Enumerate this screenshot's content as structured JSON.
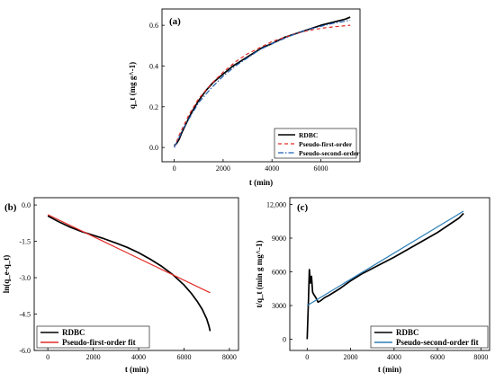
{
  "chart_data": [
    {
      "id": "a",
      "type": "line",
      "panel_label": "(a)",
      "xlabel": "t (min)",
      "ylabel": "q_t (mg g^-1)",
      "xlim": [
        -500,
        7600
      ],
      "ylim": [
        -0.07,
        0.68
      ],
      "xticks": [
        0,
        2000,
        4000,
        6000
      ],
      "xtick_labels": [
        "0",
        "2000",
        "4000",
        "6000"
      ],
      "yticks": [
        0.0,
        0.2,
        0.4,
        0.6
      ],
      "ytick_labels": [
        "0.0",
        "0.2",
        "0.4",
        "0.6"
      ],
      "legend_position": "bottom-right",
      "series": [
        {
          "name": "RDBC",
          "color": "#000000",
          "dash": "solid",
          "x": [
            0,
            100,
            200,
            300,
            500,
            700,
            1000,
            1300,
            1600,
            2000,
            2400,
            2800,
            3200,
            3600,
            4000,
            4500,
            5000,
            5500,
            6000,
            6500,
            7000,
            7200
          ],
          "y": [
            0.01,
            0.02,
            0.04,
            0.07,
            0.12,
            0.17,
            0.23,
            0.28,
            0.32,
            0.36,
            0.4,
            0.43,
            0.46,
            0.49,
            0.51,
            0.54,
            0.56,
            0.58,
            0.6,
            0.615,
            0.63,
            0.64
          ]
        },
        {
          "name": "Pseudo-first-order",
          "color": "#e32b26",
          "dash": "4,3",
          "x": [
            0,
            100,
            200,
            400,
            600,
            800,
            1000,
            1500,
            2000,
            2500,
            3000,
            3500,
            4000,
            4500,
            5000,
            5500,
            6000,
            6500,
            7000,
            7200
          ],
          "y": [
            0.0,
            0.03,
            0.06,
            0.11,
            0.16,
            0.2,
            0.24,
            0.31,
            0.37,
            0.42,
            0.46,
            0.49,
            0.52,
            0.54,
            0.56,
            0.575,
            0.585,
            0.592,
            0.598,
            0.6
          ]
        },
        {
          "name": "Pseudo-second-order",
          "color": "#1f5fb4",
          "dash": "6,2,1.5,2",
          "x": [
            0,
            100,
            200,
            400,
            600,
            800,
            1000,
            1500,
            2000,
            2500,
            3000,
            3500,
            4000,
            4500,
            5000,
            5500,
            6000,
            6500,
            7000,
            7200
          ],
          "y": [
            0.0,
            0.025,
            0.05,
            0.1,
            0.14,
            0.18,
            0.22,
            0.29,
            0.35,
            0.4,
            0.44,
            0.48,
            0.51,
            0.535,
            0.56,
            0.58,
            0.595,
            0.61,
            0.62,
            0.625
          ]
        }
      ]
    },
    {
      "id": "b",
      "type": "line",
      "panel_label": "(b)",
      "xlabel": "t (min)",
      "ylabel": "ln(q_e-q_t)",
      "xlim": [
        -600,
        8400
      ],
      "ylim": [
        -6.0,
        0.3
      ],
      "xticks": [
        0,
        2000,
        4000,
        6000,
        8000
      ],
      "xtick_labels": [
        "0",
        "2000",
        "4000",
        "6000",
        "8000"
      ],
      "yticks": [
        0.0,
        -1.5,
        -3.0,
        -4.5,
        -6.0
      ],
      "ytick_labels": [
        "0.0",
        "-1.5",
        "-3.0",
        "-4.5",
        "-6.0"
      ],
      "legend_position": "bottom-left",
      "series": [
        {
          "name": "RDBC",
          "color": "#000000",
          "dash": "solid",
          "x": [
            0,
            200,
            500,
            1000,
            1500,
            2000,
            2500,
            3000,
            3500,
            4000,
            4500,
            5000,
            5500,
            6000,
            6300,
            6600,
            6800,
            7000,
            7100,
            7150
          ],
          "y": [
            -0.45,
            -0.55,
            -0.7,
            -0.92,
            -1.1,
            -1.25,
            -1.4,
            -1.57,
            -1.75,
            -1.97,
            -2.23,
            -2.52,
            -2.87,
            -3.3,
            -3.62,
            -4.0,
            -4.3,
            -4.7,
            -5.0,
            -5.2
          ]
        },
        {
          "name": "Pseudo-first-order fit",
          "color": "#e32b26",
          "dash": "solid",
          "x": [
            0,
            7150
          ],
          "y": [
            -0.4,
            -3.62
          ]
        }
      ]
    },
    {
      "id": "c",
      "type": "line",
      "panel_label": "(c)",
      "xlabel": "t (min)",
      "ylabel": "t/q_t (min g mg^-1)",
      "xlim": [
        -800,
        8400
      ],
      "ylim": [
        -1000,
        12600
      ],
      "xticks": [
        0,
        2000,
        4000,
        6000,
        8000
      ],
      "xtick_labels": [
        "0",
        "2000",
        "4000",
        "6000",
        "8000"
      ],
      "yticks": [
        0,
        3000,
        6000,
        9000,
        12000
      ],
      "ytick_labels": [
        "0",
        "3000",
        "6000",
        "9000",
        "12,000"
      ],
      "legend_position": "bottom-right",
      "series": [
        {
          "name": "RDBC",
          "color": "#000000",
          "dash": "solid",
          "x": [
            0,
            60,
            100,
            150,
            200,
            250,
            300,
            400,
            500,
            600,
            800,
            1000,
            1500,
            2000,
            2500,
            3000,
            3500,
            4000,
            5000,
            6000,
            7000,
            7200
          ],
          "y": [
            0,
            3500,
            6200,
            5000,
            5600,
            4200,
            4000,
            3700,
            3300,
            3400,
            3700,
            3900,
            4500,
            5200,
            5800,
            6300,
            6800,
            7300,
            8400,
            9500,
            10800,
            11200
          ]
        },
        {
          "name": "Pseudo-second-order fit",
          "color": "#2c7fb8",
          "dash": "solid",
          "x": [
            0,
            7200
          ],
          "y": [
            3000,
            11400
          ]
        }
      ]
    }
  ]
}
